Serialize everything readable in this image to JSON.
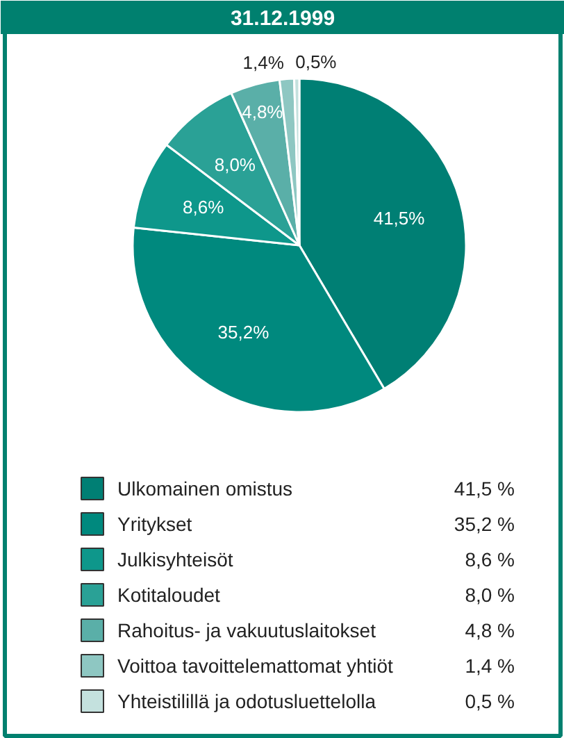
{
  "chart_data": {
    "type": "pie",
    "title": "31.12.1999",
    "legend": "bottom",
    "categories": [
      "Ulkomainen omistus",
      "Yritykset",
      "Julkisyhteisöt",
      "Kotitaloudet",
      "Rahoitus- ja vakuutuslaitokset",
      "Voittoa tavoittelemattomat yhtiöt",
      "Yhteistilillä ja odotusluettelolla"
    ],
    "values": [
      41.5,
      35.2,
      8.6,
      8.0,
      4.8,
      1.4,
      0.5
    ],
    "value_labels": [
      "41,5%",
      "35,2%",
      "8,6%",
      "8,0%",
      "4,8%",
      "1,4%",
      "0,5%"
    ],
    "colors": [
      "#007f74",
      "#00897e",
      "#0e978b",
      "#2aa196",
      "#5aafa8",
      "#8ec7c2",
      "#c4e1de"
    ],
    "annotations": [
      "41,5 %",
      "35,2 %",
      "8,6 %",
      "8,0 %",
      "4,8 %",
      "1,4 %",
      "0,5 %"
    ]
  }
}
